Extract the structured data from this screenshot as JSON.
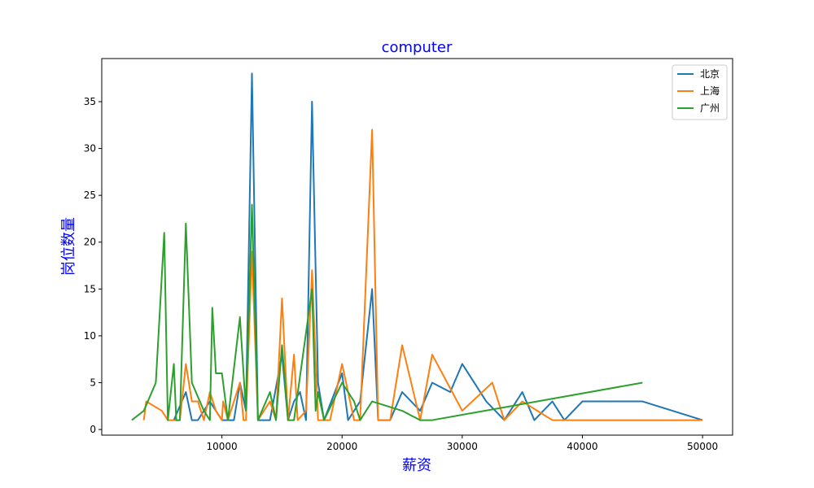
{
  "chart_data": {
    "type": "line",
    "title": "computer",
    "xlabel": "薪资",
    "ylabel": "岗位数量",
    "xlim": [
      0,
      52500
    ],
    "ylim": [
      -0.6,
      39.6
    ],
    "xticks": [
      10000,
      20000,
      30000,
      40000,
      50000
    ],
    "yticks": [
      0,
      5,
      10,
      15,
      20,
      25,
      30,
      35
    ],
    "grid": false,
    "legend_position": "top-right",
    "series": [
      {
        "name": "北京",
        "color": "#1f77b4",
        "points": [
          [
            6000,
            1
          ],
          [
            7000,
            4
          ],
          [
            7500,
            1
          ],
          [
            8000,
            1
          ],
          [
            9000,
            3
          ],
          [
            10000,
            1
          ],
          [
            11000,
            1
          ],
          [
            11500,
            5
          ],
          [
            12000,
            2
          ],
          [
            12500,
            38
          ],
          [
            13000,
            1
          ],
          [
            14000,
            1
          ],
          [
            15000,
            8
          ],
          [
            15500,
            1
          ],
          [
            16000,
            3
          ],
          [
            16500,
            4
          ],
          [
            17000,
            1
          ],
          [
            17500,
            35
          ],
          [
            18000,
            5
          ],
          [
            18500,
            1
          ],
          [
            20000,
            6
          ],
          [
            20500,
            1
          ],
          [
            21000,
            2
          ],
          [
            21500,
            3
          ],
          [
            22500,
            15
          ],
          [
            23000,
            1
          ],
          [
            24000,
            1
          ],
          [
            25000,
            4
          ],
          [
            26500,
            2
          ],
          [
            27500,
            5
          ],
          [
            29000,
            4
          ],
          [
            30000,
            7
          ],
          [
            32000,
            3
          ],
          [
            33500,
            1
          ],
          [
            35000,
            4
          ],
          [
            36000,
            1
          ],
          [
            37500,
            3
          ],
          [
            38500,
            1
          ],
          [
            40000,
            3
          ],
          [
            45000,
            3
          ],
          [
            50000,
            1
          ]
        ]
      },
      {
        "name": "上海",
        "color": "#ff7f0e",
        "points": [
          [
            3500,
            1
          ],
          [
            3700,
            3
          ],
          [
            5000,
            2
          ],
          [
            5500,
            1
          ],
          [
            6000,
            1
          ],
          [
            6500,
            1
          ],
          [
            7000,
            7
          ],
          [
            7500,
            3
          ],
          [
            8000,
            3
          ],
          [
            8500,
            1
          ],
          [
            9000,
            4
          ],
          [
            9500,
            2
          ],
          [
            10000,
            1
          ],
          [
            10100,
            3
          ],
          [
            10500,
            1
          ],
          [
            11000,
            3
          ],
          [
            11500,
            5
          ],
          [
            11800,
            1
          ],
          [
            12000,
            1
          ],
          [
            12500,
            19
          ],
          [
            13000,
            1
          ],
          [
            14000,
            3
          ],
          [
            14500,
            1
          ],
          [
            15000,
            14
          ],
          [
            15500,
            1
          ],
          [
            16000,
            8
          ],
          [
            16300,
            1
          ],
          [
            17000,
            2
          ],
          [
            17500,
            17
          ],
          [
            18000,
            1
          ],
          [
            18500,
            1
          ],
          [
            19000,
            1
          ],
          [
            20000,
            7
          ],
          [
            21000,
            1
          ],
          [
            21500,
            1
          ],
          [
            22500,
            32
          ],
          [
            23000,
            1
          ],
          [
            24000,
            1
          ],
          [
            25000,
            9
          ],
          [
            26500,
            1
          ],
          [
            27500,
            8
          ],
          [
            30000,
            2
          ],
          [
            32500,
            5
          ],
          [
            33500,
            1
          ],
          [
            35000,
            3
          ],
          [
            37500,
            1
          ],
          [
            40000,
            1
          ],
          [
            45000,
            1
          ],
          [
            50000,
            1
          ]
        ]
      },
      {
        "name": "广州",
        "color": "#2ca02c",
        "points": [
          [
            2500,
            1
          ],
          [
            3500,
            2
          ],
          [
            4500,
            5
          ],
          [
            5200,
            21
          ],
          [
            5500,
            1
          ],
          [
            6000,
            7
          ],
          [
            6200,
            1
          ],
          [
            6500,
            1
          ],
          [
            7000,
            22
          ],
          [
            7500,
            5
          ],
          [
            8500,
            2
          ],
          [
            9000,
            1
          ],
          [
            9200,
            13
          ],
          [
            9500,
            6
          ],
          [
            10000,
            6
          ],
          [
            10500,
            1
          ],
          [
            11500,
            12
          ],
          [
            12000,
            2
          ],
          [
            12500,
            24
          ],
          [
            13000,
            1
          ],
          [
            14000,
            4
          ],
          [
            14500,
            1
          ],
          [
            15000,
            9
          ],
          [
            15500,
            1
          ],
          [
            16000,
            1
          ],
          [
            17500,
            15
          ],
          [
            17800,
            2
          ],
          [
            18000,
            4
          ],
          [
            18500,
            1
          ],
          [
            20000,
            5
          ],
          [
            21000,
            3
          ],
          [
            21500,
            1
          ],
          [
            22500,
            3
          ],
          [
            25000,
            2
          ],
          [
            26500,
            1
          ],
          [
            27500,
            1
          ],
          [
            45000,
            5
          ]
        ]
      }
    ]
  }
}
